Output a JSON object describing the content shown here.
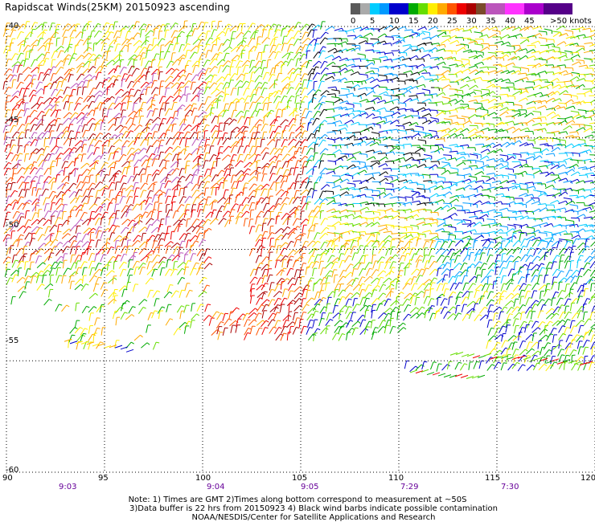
{
  "title": "Rapidscat Winds(25KM) 20150923 ascending",
  "legend": {
    "labels": [
      "0",
      "5",
      "10",
      "15",
      "20",
      "25",
      "30",
      "35",
      "40",
      "45",
      ">50 knots"
    ],
    "colors": [
      "#333333",
      "#999999",
      "#00ccff",
      "#0088ff",
      "#0000cc",
      "#00aa00",
      "#66dd00",
      "#ffee00",
      "#ffaa00",
      "#ff6600",
      "#ee0000",
      "#aa0000",
      "#7a4a2a",
      "#bb55bb",
      "#ff33ff",
      "#aa00cc",
      "#550088"
    ]
  },
  "map": {
    "lon_range": [
      90,
      120
    ],
    "lat_range": [
      -60,
      -40
    ],
    "lon_ticks": [
      "90",
      "95",
      "100",
      "105",
      "110",
      "115",
      "120"
    ],
    "lat_ticks": [
      "-40",
      "-45",
      "-50",
      "-55",
      "-60"
    ]
  },
  "times": [
    "9:03",
    "9:04",
    "9:05",
    "7:29",
    "7:30"
  ],
  "notes": [
    "Note: 1) Times are GMT 2)Times along bottom correspond to measurement at ~50S",
    "3)Data buffer is 22 hrs from 20150923 4) Black wind barbs indicate possible contamination",
    "NOAA/NESDIS/Center for Satellite Applications and Research"
  ]
}
